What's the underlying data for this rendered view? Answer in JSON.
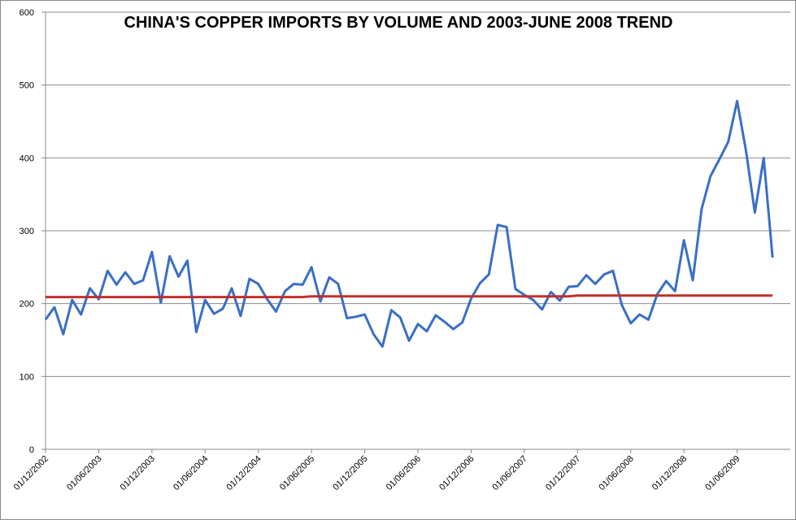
{
  "chart_data": {
    "type": "line",
    "title": "CHINA'S COPPER IMPORTS BY VOLUME AND 2003-JUNE 2008 TREND",
    "categories": [
      "01/12/2002",
      null,
      null,
      null,
      null,
      null,
      "01/06/2003",
      null,
      null,
      null,
      null,
      null,
      "01/12/2003",
      null,
      null,
      null,
      null,
      null,
      "01/06/2004",
      null,
      null,
      null,
      null,
      null,
      "01/12/2004",
      null,
      null,
      null,
      null,
      null,
      "01/06/2005",
      null,
      null,
      null,
      null,
      null,
      "01/12/2005",
      null,
      null,
      null,
      null,
      null,
      "01/06/2006",
      null,
      null,
      null,
      null,
      null,
      "01/12/2006",
      null,
      null,
      null,
      null,
      null,
      "01/06/2007",
      null,
      null,
      null,
      null,
      null,
      "01/12/2007",
      null,
      null,
      null,
      null,
      null,
      "01/06/2008",
      null,
      null,
      null,
      null,
      null,
      "01/12/2008",
      null,
      null,
      null,
      null,
      null,
      "01/06/2009",
      null,
      null,
      null,
      null
    ],
    "series": [
      {
        "color": "#3a6fc4",
        "values": [
          178,
          195,
          158,
          205,
          185,
          221,
          206,
          245,
          226,
          243,
          227,
          232,
          271,
          201,
          265,
          237,
          259,
          161,
          205,
          186,
          193,
          221,
          183,
          234,
          227,
          206,
          189,
          217,
          227,
          226,
          250,
          203,
          236,
          227,
          180,
          182,
          185,
          158,
          141,
          191,
          181,
          149,
          172,
          162,
          184,
          175,
          165,
          174,
          207,
          228,
          240,
          308,
          305,
          220,
          212,
          205,
          192,
          216,
          204,
          223,
          224,
          239,
          227,
          240,
          245,
          198,
          173,
          185,
          178,
          213,
          231,
          217,
          287,
          232,
          330,
          375,
          398,
          422,
          478,
          410,
          325,
          400,
          263
        ]
      },
      {
        "color": "#c0302c",
        "values": [
          209,
          209,
          209,
          209,
          209,
          209,
          209,
          209,
          209,
          209,
          209,
          209,
          209,
          209,
          209,
          209,
          209,
          209,
          209,
          209,
          209,
          209,
          209,
          209,
          209,
          209,
          209,
          209,
          209,
          209,
          210,
          210,
          210,
          210,
          210,
          210,
          210,
          210,
          210,
          210,
          210,
          210,
          210,
          210,
          210,
          210,
          210,
          210,
          210,
          210,
          210,
          210,
          210,
          210,
          210,
          210,
          210,
          210,
          210,
          210,
          211,
          211,
          211,
          211,
          211,
          211,
          211,
          211,
          211,
          211,
          211,
          211,
          211,
          211,
          211,
          211,
          211,
          211,
          211,
          211,
          211,
          211,
          211
        ]
      }
    ],
    "ylim": [
      0,
      600
    ],
    "yticks": [
      0,
      100,
      200,
      300,
      400,
      500,
      600
    ],
    "grid": true
  }
}
